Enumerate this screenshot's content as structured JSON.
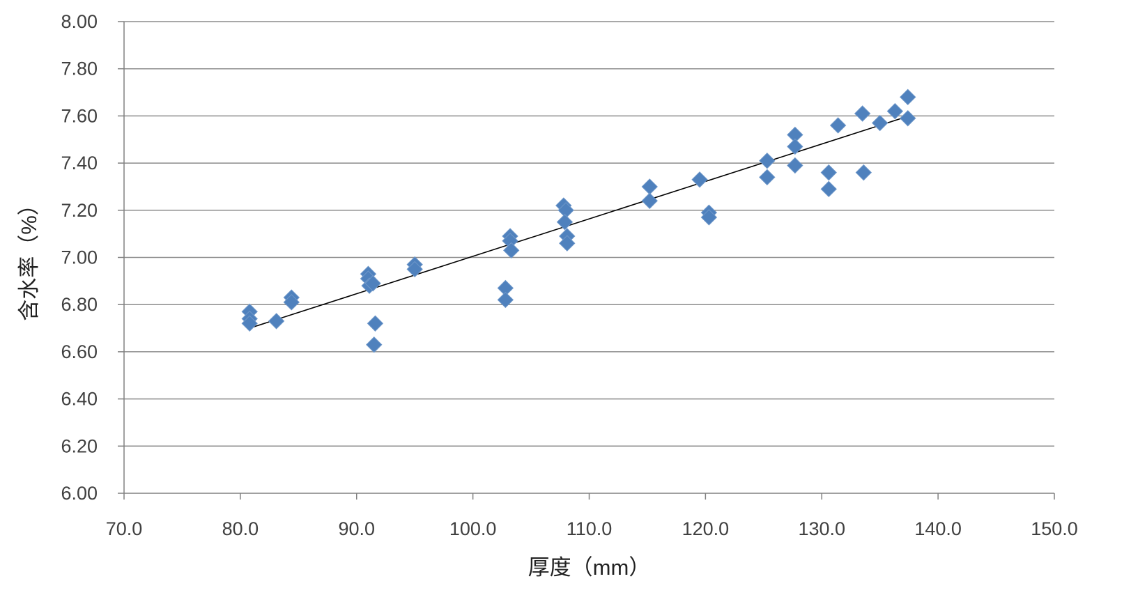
{
  "chart_data": {
    "type": "scatter",
    "title": "",
    "xlabel": "厚度（mm）",
    "ylabel": "含水率（%）",
    "xlim": [
      70.0,
      150.0
    ],
    "ylim": [
      6.0,
      8.0
    ],
    "x_ticks": [
      "70.0",
      "80.0",
      "90.0",
      "100.0",
      "110.0",
      "120.0",
      "130.0",
      "140.0",
      "150.0"
    ],
    "y_ticks": [
      "6.00",
      "6.20",
      "6.40",
      "6.60",
      "6.80",
      "7.00",
      "7.20",
      "7.40",
      "7.60",
      "7.80",
      "8.00"
    ],
    "grid": "horizontal",
    "legend": "none",
    "colors": {
      "marker": "#4F81BD",
      "trendline": "#000000",
      "grid": "#8C8C8C",
      "axis": "#808080"
    },
    "series": [
      {
        "marker": "diamond",
        "points": [
          [
            80.8,
            6.77
          ],
          [
            80.8,
            6.74
          ],
          [
            80.8,
            6.72
          ],
          [
            83.1,
            6.73
          ],
          [
            84.4,
            6.83
          ],
          [
            84.4,
            6.81
          ],
          [
            91.0,
            6.93
          ],
          [
            91.0,
            6.91
          ],
          [
            91.1,
            6.88
          ],
          [
            91.4,
            6.89
          ],
          [
            91.6,
            6.72
          ],
          [
            91.5,
            6.63
          ],
          [
            95.0,
            6.97
          ],
          [
            95.0,
            6.95
          ],
          [
            102.8,
            6.87
          ],
          [
            102.8,
            6.82
          ],
          [
            103.2,
            7.09
          ],
          [
            103.2,
            7.07
          ],
          [
            103.3,
            7.03
          ],
          [
            107.8,
            7.22
          ],
          [
            108.0,
            7.2
          ],
          [
            107.9,
            7.15
          ],
          [
            108.1,
            7.09
          ],
          [
            108.1,
            7.06
          ],
          [
            115.2,
            7.3
          ],
          [
            115.2,
            7.24
          ],
          [
            119.5,
            7.33
          ],
          [
            120.3,
            7.19
          ],
          [
            120.3,
            7.17
          ],
          [
            125.3,
            7.41
          ],
          [
            125.3,
            7.34
          ],
          [
            127.7,
            7.52
          ],
          [
            127.7,
            7.47
          ],
          [
            127.7,
            7.39
          ],
          [
            130.6,
            7.36
          ],
          [
            130.6,
            7.29
          ],
          [
            131.4,
            7.56
          ],
          [
            133.5,
            7.61
          ],
          [
            133.6,
            7.36
          ],
          [
            135.0,
            7.57
          ],
          [
            136.3,
            7.62
          ],
          [
            137.4,
            7.68
          ],
          [
            137.4,
            7.59
          ]
        ]
      }
    ],
    "trendline": {
      "type": "linear",
      "x": [
        80.8,
        137.5
      ],
      "y": [
        6.7,
        7.6
      ]
    }
  }
}
